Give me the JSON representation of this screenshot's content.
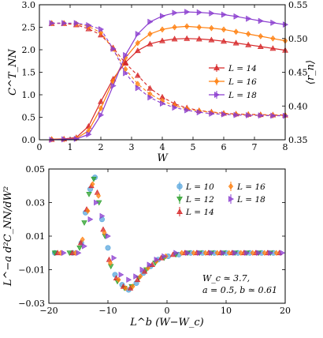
{
  "chart_data": [
    {
      "type": "line",
      "panel": "top",
      "xlabel": "W",
      "ylabel": "C^T_NN",
      "y2label": "⟨r_n⟩",
      "xlim": [
        0,
        8
      ],
      "ylim": [
        0,
        3.0
      ],
      "y2lim": [
        0.35,
        0.55
      ],
      "xticks": [
        "0",
        "1",
        "2",
        "3",
        "4",
        "5",
        "6",
        "7",
        "8"
      ],
      "yticks": [
        "0.0",
        "0.5",
        "1.0",
        "1.5",
        "2.0",
        "2.5",
        "3.0"
      ],
      "y2ticks": [
        "0.35",
        "0.40",
        "0.45",
        "0.50",
        "0.55"
      ],
      "legend_position": "right-center",
      "x": [
        0.4,
        0.8,
        1.2,
        1.6,
        2.0,
        2.4,
        2.8,
        3.2,
        3.6,
        4.0,
        4.4,
        4.8,
        5.2,
        5.6,
        6.0,
        6.4,
        6.8,
        7.2,
        7.6,
        8.0
      ],
      "series": [
        {
          "name": "L = 14",
          "color": "#d62728",
          "marker": "triangle-up",
          "axis": "left",
          "values": [
            0.01,
            0.02,
            0.05,
            0.3,
            0.85,
            1.35,
            1.72,
            1.98,
            2.13,
            2.2,
            2.24,
            2.25,
            2.24,
            2.22,
            2.19,
            2.15,
            2.11,
            2.07,
            2.03,
            1.99
          ]
        },
        {
          "name": "L = 16",
          "color": "#ff7f0e",
          "marker": "diamond",
          "axis": "left",
          "values": [
            0.01,
            0.01,
            0.03,
            0.2,
            0.7,
            1.3,
            1.82,
            2.15,
            2.35,
            2.45,
            2.5,
            2.52,
            2.5,
            2.48,
            2.45,
            2.4,
            2.35,
            2.3,
            2.25,
            2.2
          ]
        },
        {
          "name": "L = 18",
          "color": "#8a3ccf",
          "marker": "triangle-right",
          "axis": "left",
          "values": [
            0.0,
            0.01,
            0.02,
            0.12,
            0.55,
            1.2,
            1.88,
            2.35,
            2.62,
            2.75,
            2.82,
            2.84,
            2.83,
            2.81,
            2.78,
            2.74,
            2.69,
            2.64,
            2.6,
            2.56
          ]
        },
        {
          "name": "L = 14 ⟨r_n⟩",
          "color": "#d62728",
          "marker": "triangle-up",
          "axis": "right",
          "dashed": true,
          "values": [
            0.5223,
            0.5223,
            0.5203,
            0.5143,
            0.5053,
            0.4863,
            0.4633,
            0.4453,
            0.4263,
            0.4133,
            0.4033,
            0.3973,
            0.3933,
            0.3913,
            0.3893,
            0.3883,
            0.3877,
            0.3873,
            0.3869,
            0.3867
          ]
        },
        {
          "name": "L = 16 ⟨r_n⟩",
          "color": "#ff7f0e",
          "marker": "diamond",
          "axis": "right",
          "dashed": true,
          "values": [
            0.5227,
            0.5227,
            0.5217,
            0.5177,
            0.5087,
            0.4847,
            0.4547,
            0.4327,
            0.4177,
            0.4077,
            0.4007,
            0.3957,
            0.3927,
            0.3907,
            0.3887,
            0.3877,
            0.3871,
            0.3867,
            0.3863,
            0.3861
          ]
        },
        {
          "name": "L = 18 ⟨r_n⟩",
          "color": "#8a3ccf",
          "marker": "triangle-right",
          "axis": "right",
          "dashed": true,
          "values": [
            0.5227,
            0.5227,
            0.5227,
            0.5197,
            0.5137,
            0.4847,
            0.4487,
            0.4267,
            0.4127,
            0.4037,
            0.3977,
            0.3937,
            0.3907,
            0.3887,
            0.3877,
            0.3867,
            0.3863,
            0.386,
            0.3857,
            0.3855
          ]
        }
      ]
    },
    {
      "type": "scatter",
      "panel": "bottom",
      "xlabel": "L^b (W−W_c)",
      "ylabel": "L^−a d²C_NN/dW²",
      "xlim": [
        -20,
        20
      ],
      "ylim": [
        -0.03,
        0.05
      ],
      "xticks": [
        "−20",
        "−10",
        "0",
        "10",
        "20"
      ],
      "yticks": [
        "−0.03",
        "−0.01",
        "0.01",
        "0.03",
        "0.05"
      ],
      "legend_position": "top-right",
      "annotation": [
        "W_c ≃ 3.7,",
        "a = 0.5, b ≃ 0.61"
      ],
      "series": [
        {
          "name": "L = 10",
          "color": "#5aa7dd",
          "marker": "circle",
          "points": [
            [
              -19,
              0
            ],
            [
              -16,
              0
            ],
            [
              -14.5,
              0.006
            ],
            [
              -13.8,
              0.024
            ],
            [
              -13,
              0.038
            ],
            [
              -12.2,
              0.045
            ],
            [
              -11,
              0.02
            ],
            [
              -10,
              0.003
            ],
            [
              -8.8,
              -0.013
            ],
            [
              -7.6,
              -0.019
            ],
            [
              -6.5,
              -0.022
            ],
            [
              -5.2,
              -0.018
            ],
            [
              -4,
              -0.012
            ],
            [
              -2.8,
              -0.008
            ],
            [
              -1.5,
              -0.004
            ],
            [
              0.2,
              -0.002
            ],
            [
              2,
              -0.001
            ],
            [
              4,
              0
            ],
            [
              6,
              0
            ],
            [
              8,
              0
            ],
            [
              10,
              0
            ],
            [
              12,
              0
            ],
            [
              14,
              0
            ],
            [
              16,
              0
            ],
            [
              18,
              0
            ]
          ]
        },
        {
          "name": "L = 12",
          "color": "#2ca02c",
          "marker": "triangle-down",
          "points": [
            [
              -19,
              0
            ],
            [
              -16.5,
              0
            ],
            [
              -14.8,
              0.003
            ],
            [
              -14,
              0.018
            ],
            [
              -13.2,
              0.035
            ],
            [
              -12.4,
              0.044
            ],
            [
              -11.5,
              0.03
            ],
            [
              -10.5,
              0.01
            ],
            [
              -9.5,
              -0.008
            ],
            [
              -8.4,
              -0.017
            ],
            [
              -7.2,
              -0.021
            ],
            [
              -6,
              -0.02
            ],
            [
              -4.8,
              -0.015
            ],
            [
              -3.5,
              -0.01
            ],
            [
              -2,
              -0.006
            ],
            [
              -0.5,
              -0.003
            ],
            [
              1.5,
              -0.001
            ],
            [
              3.5,
              0
            ],
            [
              5.5,
              0
            ],
            [
              7.5,
              0
            ],
            [
              9.5,
              0
            ],
            [
              11.5,
              0
            ],
            [
              13.5,
              0
            ],
            [
              15.5,
              0
            ],
            [
              17.5,
              0
            ]
          ]
        },
        {
          "name": "L = 14",
          "color": "#d62728",
          "marker": "triangle-up",
          "points": [
            [
              -18.5,
              0
            ],
            [
              -16,
              0
            ],
            [
              -14.6,
              0.006
            ],
            [
              -13.6,
              0.026
            ],
            [
              -12.8,
              0.04
            ],
            [
              -11.8,
              0.036
            ],
            [
              -10.8,
              0.014
            ],
            [
              -9.8,
              -0.004
            ],
            [
              -8.6,
              -0.015
            ],
            [
              -7.4,
              -0.02
            ],
            [
              -6.2,
              -0.021
            ],
            [
              -5,
              -0.016
            ],
            [
              -3.8,
              -0.011
            ],
            [
              -2.5,
              -0.007
            ],
            [
              -1,
              -0.003
            ],
            [
              1,
              -0.001
            ],
            [
              3,
              0
            ],
            [
              5,
              0
            ],
            [
              7,
              0
            ],
            [
              9,
              0
            ],
            [
              11,
              0
            ],
            [
              13,
              0
            ],
            [
              15,
              0
            ],
            [
              17,
              0
            ],
            [
              19,
              0
            ]
          ]
        },
        {
          "name": "L = 16",
          "color": "#ff7f0e",
          "marker": "diamond",
          "points": [
            [
              -18,
              0
            ],
            [
              -15.5,
              0
            ],
            [
              -14.3,
              0.008
            ],
            [
              -13.4,
              0.025
            ],
            [
              -12.6,
              0.041
            ],
            [
              -11.6,
              0.034
            ],
            [
              -10.6,
              0.012
            ],
            [
              -9.6,
              -0.006
            ],
            [
              -8.2,
              -0.016
            ],
            [
              -7,
              -0.021
            ],
            [
              -5.8,
              -0.02
            ],
            [
              -4.5,
              -0.014
            ],
            [
              -3.2,
              -0.009
            ],
            [
              -1.8,
              -0.005
            ],
            [
              -0.2,
              -0.002
            ],
            [
              2.5,
              0
            ],
            [
              4.5,
              0
            ],
            [
              6.5,
              0
            ],
            [
              8.5,
              0
            ],
            [
              10.5,
              0
            ],
            [
              12.5,
              0
            ],
            [
              14.5,
              0
            ],
            [
              16.5,
              0
            ],
            [
              18.5,
              0
            ]
          ]
        },
        {
          "name": "L = 18",
          "color": "#8a3ccf",
          "marker": "triangle-right",
          "points": [
            [
              -17.5,
              0
            ],
            [
              -15,
              0
            ],
            [
              -14,
              0.004
            ],
            [
              -13,
              0.02
            ],
            [
              -12,
              0.03
            ],
            [
              -11,
              0.022
            ],
            [
              -10,
              0.01
            ],
            [
              -9,
              -0.003
            ],
            [
              -7.8,
              -0.013
            ],
            [
              -6.5,
              -0.016
            ],
            [
              -5.3,
              -0.014
            ],
            [
              -4.2,
              -0.01
            ],
            [
              -3,
              -0.007
            ],
            [
              -1.8,
              -0.004
            ],
            [
              -0.5,
              -0.002
            ],
            [
              1.5,
              0
            ],
            [
              3.5,
              0
            ],
            [
              5.5,
              0
            ],
            [
              7.5,
              0
            ],
            [
              9.5,
              0
            ],
            [
              11.5,
              0
            ],
            [
              13.5,
              0
            ],
            [
              15.5,
              0
            ],
            [
              17.5,
              0
            ],
            [
              19.5,
              0
            ]
          ]
        }
      ]
    }
  ]
}
